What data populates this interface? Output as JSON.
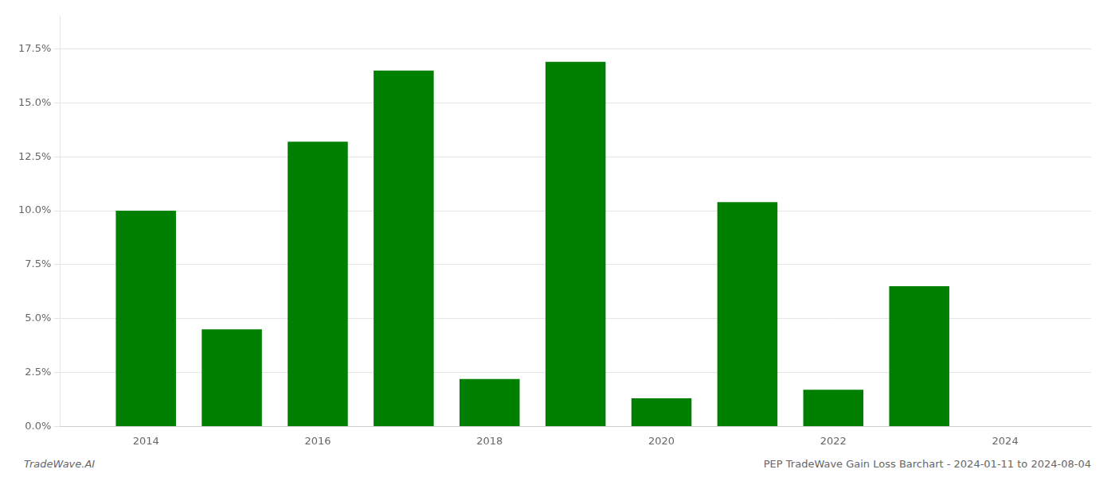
{
  "chart_data": {
    "type": "bar",
    "x": [
      2014,
      2015,
      2016,
      2017,
      2018,
      2019,
      2020,
      2021,
      2022,
      2023,
      2024
    ],
    "values": [
      0.1,
      0.045,
      0.132,
      0.165,
      0.022,
      0.169,
      0.013,
      0.104,
      0.017,
      0.065,
      0.0
    ],
    "color": "#008000",
    "xlim": [
      2013.0,
      2025.0
    ],
    "xticks": [
      2014,
      2016,
      2018,
      2020,
      2022,
      2024
    ],
    "ylim": [
      0,
      0.19
    ],
    "yticks": [
      {
        "value": 0.0,
        "label": "0.0%"
      },
      {
        "value": 0.025,
        "label": "2.5%"
      },
      {
        "value": 0.05,
        "label": "5.0%"
      },
      {
        "value": 0.075,
        "label": "7.5%"
      },
      {
        "value": 0.1,
        "label": "10.0%"
      },
      {
        "value": 0.125,
        "label": "12.5%"
      },
      {
        "value": 0.15,
        "label": "15.0%"
      },
      {
        "value": 0.175,
        "label": "17.5%"
      }
    ],
    "grid": true,
    "annotations": [
      "TradeWave.AI",
      "PEP TradeWave Gain Loss Barchart - 2024-01-11 to 2024-08-04"
    ]
  }
}
